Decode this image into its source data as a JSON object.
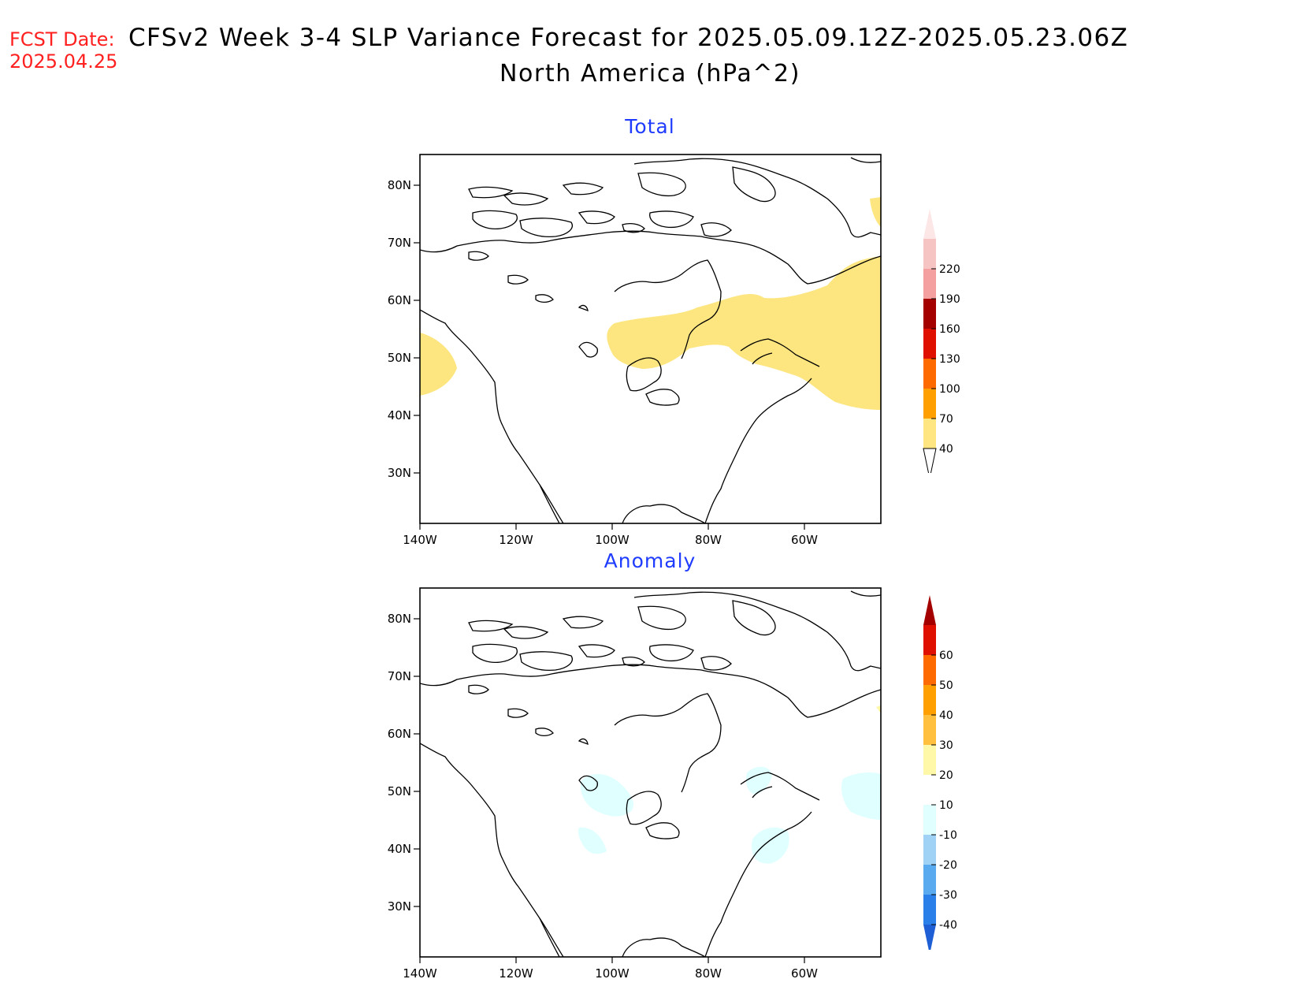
{
  "header": {
    "fcst_label": "FCST Date:",
    "fcst_date": "2025.04.25",
    "title_line1": "CFSv2 Week 3-4 SLP Variance Forecast for 2025.05.09.12Z-2025.05.23.06Z",
    "title_line2": "North America (hPa^2)"
  },
  "panels": [
    {
      "name": "total",
      "title": "Total",
      "lat_labels": [
        "80N",
        "70N",
        "60N",
        "50N",
        "40N",
        "30N"
      ],
      "lon_labels": [
        "140W",
        "120W",
        "100W",
        "80W",
        "60W"
      ],
      "colorbar": {
        "labels": [
          "220",
          "190",
          "160",
          "130",
          "100",
          "70",
          "40"
        ],
        "colors": [
          "#f7c4c4",
          "#f5a0a0",
          "#a50000",
          "#e01000",
          "#ff6a00",
          "#ff9f00",
          "#ffe680"
        ],
        "top_triangle": "#fde6e6",
        "bottom_triangle": "#ffffff"
      }
    },
    {
      "name": "anomaly",
      "title": "Anomaly",
      "lat_labels": [
        "80N",
        "70N",
        "60N",
        "50N",
        "40N",
        "30N"
      ],
      "lon_labels": [
        "140W",
        "120W",
        "100W",
        "80W",
        "60W"
      ],
      "colorbar": {
        "labels": [
          "60",
          "50",
          "40",
          "30",
          "20",
          "10",
          "-10",
          "-20",
          "-30",
          "-40"
        ],
        "colors": [
          "#e01000",
          "#ff6a00",
          "#ff9f00",
          "#ffc040",
          "#fff8a8",
          "#ffffff",
          "#e0ffff",
          "#a0d2f5",
          "#5aaaf0",
          "#2a7fe8"
        ],
        "top_triangle": "#a50000",
        "bottom_triangle": "#1f5fd6"
      }
    }
  ]
}
